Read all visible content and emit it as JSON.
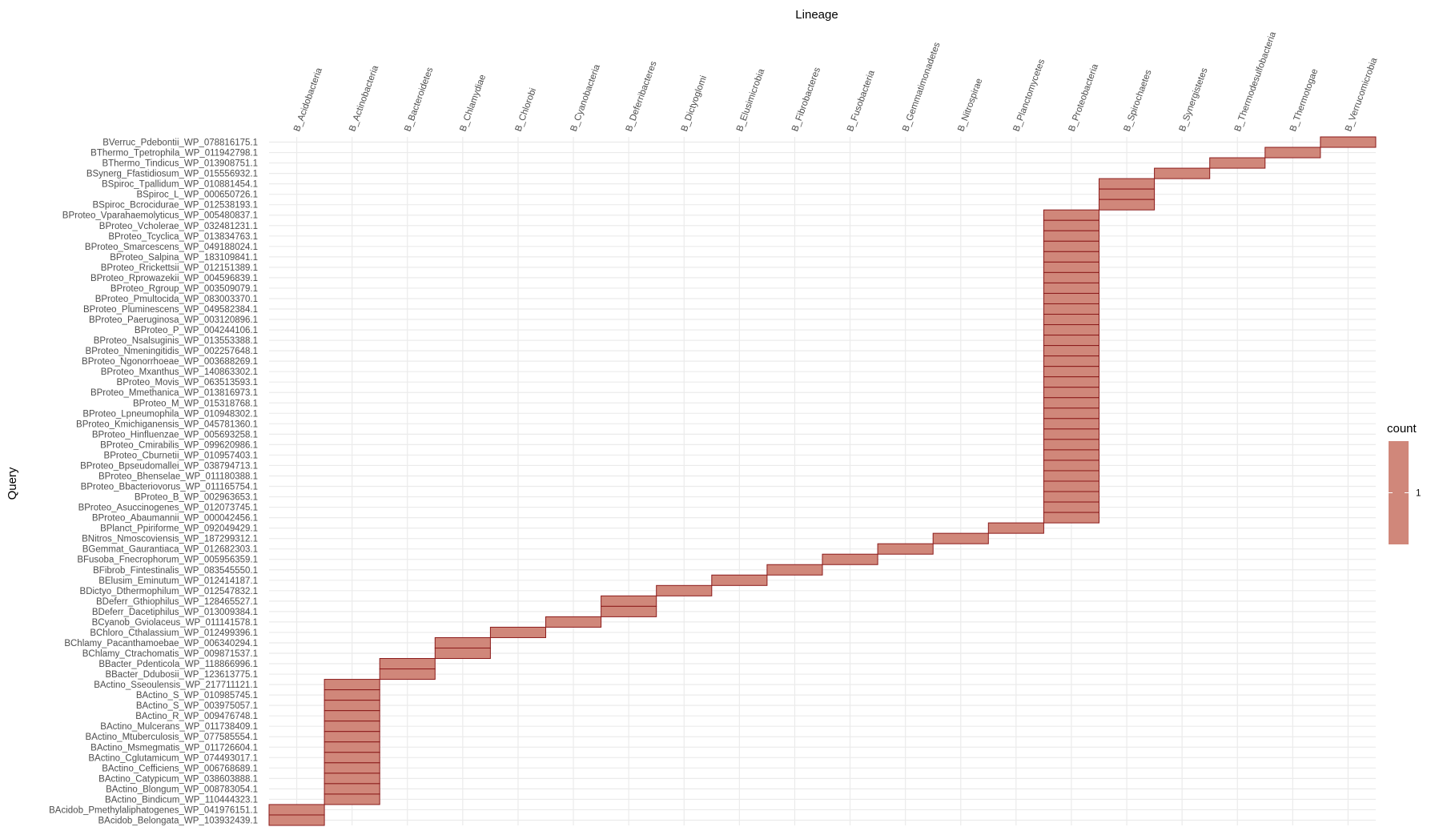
{
  "chart_data": {
    "type": "heatmap",
    "title": "",
    "xlabel": "Lineage",
    "ylabel": "Query",
    "x_position": "top",
    "grid": true,
    "fill_color": "#d0877a",
    "border_color": "#8b1a1a",
    "grid_color": "#ebebeb",
    "legend": {
      "title": "count",
      "label": "1",
      "placement": "right"
    },
    "categories_x": [
      "B_Acidobacteria",
      "B_Actinobacteria",
      "B_Bacteroidetes",
      "B_Chlamydiae",
      "B_Chlorobi",
      "B_Cyanobacteria",
      "B_Deferribacteres",
      "B_Dictyoglomi",
      "B_Elusimicrobia",
      "B_Fibrobacteres",
      "B_Fusobacteria",
      "B_Gemmatimonadetes",
      "B_Nitrospirae",
      "B_Planctomycetes",
      "B_Proteobacteria",
      "B_Spirochaetes",
      "B_Synergistetes",
      "B_Thermodesulfobacteria",
      "B_Thermotogae",
      "B_Verrucomicrobia"
    ],
    "categories_y": [
      "BVerruc_Pdebontii_WP_078816175.1",
      "BThermo_Tpetrophila_WP_011942798.1",
      "BThermo_Tindicus_WP_013908751.1",
      "BSynerg_Ffastidiosum_WP_015556932.1",
      "BSpiroc_Tpallidum_WP_010881454.1",
      "BSpiroc_L_WP_000650726.1",
      "BSpiroc_Bcrocidurae_WP_012538193.1",
      "BProteo_Vparahaemolyticus_WP_005480837.1",
      "BProteo_Vcholerae_WP_032481231.1",
      "BProteo_Tcyclica_WP_013834763.1",
      "BProteo_Smarcescens_WP_049188024.1",
      "BProteo_Salpina_WP_183109841.1",
      "BProteo_Rrickettsii_WP_012151389.1",
      "BProteo_Rprowazekii_WP_004596839.1",
      "BProteo_Rgroup_WP_003509079.1",
      "BProteo_Pmultocida_WP_083003370.1",
      "BProteo_Pluminescens_WP_049582384.1",
      "BProteo_Paeruginosa_WP_003120896.1",
      "BProteo_P_WP_004244106.1",
      "BProteo_Nsalsuginis_WP_013553388.1",
      "BProteo_Nmeningitidis_WP_002257648.1",
      "BProteo_Ngonorrhoeae_WP_003688269.1",
      "BProteo_Mxanthus_WP_140863302.1",
      "BProteo_Movis_WP_063513593.1",
      "BProteo_Mmethanica_WP_013816973.1",
      "BProteo_M_WP_015318768.1",
      "BProteo_Lpneumophila_WP_010948302.1",
      "BProteo_Kmichiganensis_WP_045781360.1",
      "BProteo_Hinfluenzae_WP_005693258.1",
      "BProteo_Cmirabilis_WP_099620986.1",
      "BProteo_Cburnetii_WP_010957403.1",
      "BProteo_Bpseudomallei_WP_038794713.1",
      "BProteo_Bhenselae_WP_011180388.1",
      "BProteo_Bbacteriovorus_WP_011165754.1",
      "BProteo_B_WP_002963653.1",
      "BProteo_Asuccinogenes_WP_012073745.1",
      "BProteo_Abaumannii_WP_000042456.1",
      "BPlanct_Ppiriforme_WP_092049429.1",
      "BNitros_Nmoscoviensis_WP_187299312.1",
      "BGemmat_Gaurantiaca_WP_012682303.1",
      "BFusoba_Fnecrophorum_WP_005956359.1",
      "BFibrob_Fintestinalis_WP_083545550.1",
      "BElusim_Eminutum_WP_012414187.1",
      "BDictyo_Dthermophilum_WP_012547832.1",
      "BDeferr_Gthiophilus_WP_128465527.1",
      "BDeferr_Dacetiphilus_WP_013009384.1",
      "BCyanob_Gviolaceus_WP_011141578.1",
      "BChloro_Cthalassium_WP_012499396.1",
      "BChlamy_Pacanthamoebae_WP_006340294.1",
      "BChlamy_Ctrachomatis_WP_009871537.1",
      "BBacter_Pdenticola_WP_118866996.1",
      "BBacter_Ddubosii_WP_123613775.1",
      "BActino_Sseoulensis_WP_217711121.1",
      "BActino_S_WP_010985745.1",
      "BActino_S_WP_003975057.1",
      "BActino_R_WP_009476748.1",
      "BActino_Mulcerans_WP_011738409.1",
      "BActino_Mtuberculosis_WP_077585554.1",
      "BActino_Msmegmatis_WP_011726604.1",
      "BActino_Cglutamicum_WP_074493017.1",
      "BActino_Cefficiens_WP_006768689.1",
      "BActino_Catypicum_WP_038603888.1",
      "BActino_Blongum_WP_008783054.1",
      "BActino_Bindicum_WP_110444323.1",
      "BAcidob_Pmethylaliphatogenes_WP_041976151.1",
      "BAcidob_Belongata_WP_103932439.1"
    ],
    "cells": [
      {
        "x": "B_Verrucomicrobia",
        "y": "BVerruc_Pdebontii_WP_078816175.1",
        "value": 1
      },
      {
        "x": "B_Thermotogae",
        "y": "BThermo_Tpetrophila_WP_011942798.1",
        "value": 1
      },
      {
        "x": "B_Thermodesulfobacteria",
        "y": "BThermo_Tindicus_WP_013908751.1",
        "value": 1
      },
      {
        "x": "B_Synergistetes",
        "y": "BSynerg_Ffastidiosum_WP_015556932.1",
        "value": 1
      },
      {
        "x": "B_Spirochaetes",
        "y": "BSpiroc_Tpallidum_WP_010881454.1",
        "value": 1
      },
      {
        "x": "B_Spirochaetes",
        "y": "BSpiroc_L_WP_000650726.1",
        "value": 1
      },
      {
        "x": "B_Spirochaetes",
        "y": "BSpiroc_Bcrocidurae_WP_012538193.1",
        "value": 1
      },
      {
        "x": "B_Proteobacteria",
        "y": "BProteo_Vparahaemolyticus_WP_005480837.1",
        "value": 1
      },
      {
        "x": "B_Proteobacteria",
        "y": "BProteo_Vcholerae_WP_032481231.1",
        "value": 1
      },
      {
        "x": "B_Proteobacteria",
        "y": "BProteo_Tcyclica_WP_013834763.1",
        "value": 1
      },
      {
        "x": "B_Proteobacteria",
        "y": "BProteo_Smarcescens_WP_049188024.1",
        "value": 1
      },
      {
        "x": "B_Proteobacteria",
        "y": "BProteo_Salpina_WP_183109841.1",
        "value": 1
      },
      {
        "x": "B_Proteobacteria",
        "y": "BProteo_Rrickettsii_WP_012151389.1",
        "value": 1
      },
      {
        "x": "B_Proteobacteria",
        "y": "BProteo_Rprowazekii_WP_004596839.1",
        "value": 1
      },
      {
        "x": "B_Proteobacteria",
        "y": "BProteo_Rgroup_WP_003509079.1",
        "value": 1
      },
      {
        "x": "B_Proteobacteria",
        "y": "BProteo_Pmultocida_WP_083003370.1",
        "value": 1
      },
      {
        "x": "B_Proteobacteria",
        "y": "BProteo_Pluminescens_WP_049582384.1",
        "value": 1
      },
      {
        "x": "B_Proteobacteria",
        "y": "BProteo_Paeruginosa_WP_003120896.1",
        "value": 1
      },
      {
        "x": "B_Proteobacteria",
        "y": "BProteo_P_WP_004244106.1",
        "value": 1
      },
      {
        "x": "B_Proteobacteria",
        "y": "BProteo_Nsalsuginis_WP_013553388.1",
        "value": 1
      },
      {
        "x": "B_Proteobacteria",
        "y": "BProteo_Nmeningitidis_WP_002257648.1",
        "value": 1
      },
      {
        "x": "B_Proteobacteria",
        "y": "BProteo_Ngonorrhoeae_WP_003688269.1",
        "value": 1
      },
      {
        "x": "B_Proteobacteria",
        "y": "BProteo_Mxanthus_WP_140863302.1",
        "value": 1
      },
      {
        "x": "B_Proteobacteria",
        "y": "BProteo_Movis_WP_063513593.1",
        "value": 1
      },
      {
        "x": "B_Proteobacteria",
        "y": "BProteo_Mmethanica_WP_013816973.1",
        "value": 1
      },
      {
        "x": "B_Proteobacteria",
        "y": "BProteo_M_WP_015318768.1",
        "value": 1
      },
      {
        "x": "B_Proteobacteria",
        "y": "BProteo_Lpneumophila_WP_010948302.1",
        "value": 1
      },
      {
        "x": "B_Proteobacteria",
        "y": "BProteo_Kmichiganensis_WP_045781360.1",
        "value": 1
      },
      {
        "x": "B_Proteobacteria",
        "y": "BProteo_Hinfluenzae_WP_005693258.1",
        "value": 1
      },
      {
        "x": "B_Proteobacteria",
        "y": "BProteo_Cmirabilis_WP_099620986.1",
        "value": 1
      },
      {
        "x": "B_Proteobacteria",
        "y": "BProteo_Cburnetii_WP_010957403.1",
        "value": 1
      },
      {
        "x": "B_Proteobacteria",
        "y": "BProteo_Bpseudomallei_WP_038794713.1",
        "value": 1
      },
      {
        "x": "B_Proteobacteria",
        "y": "BProteo_Bhenselae_WP_011180388.1",
        "value": 1
      },
      {
        "x": "B_Proteobacteria",
        "y": "BProteo_Bbacteriovorus_WP_011165754.1",
        "value": 1
      },
      {
        "x": "B_Proteobacteria",
        "y": "BProteo_B_WP_002963653.1",
        "value": 1
      },
      {
        "x": "B_Proteobacteria",
        "y": "BProteo_Asuccinogenes_WP_012073745.1",
        "value": 1
      },
      {
        "x": "B_Proteobacteria",
        "y": "BProteo_Abaumannii_WP_000042456.1",
        "value": 1
      },
      {
        "x": "B_Planctomycetes",
        "y": "BPlanct_Ppiriforme_WP_092049429.1",
        "value": 1
      },
      {
        "x": "B_Nitrospirae",
        "y": "BNitros_Nmoscoviensis_WP_187299312.1",
        "value": 1
      },
      {
        "x": "B_Gemmatimonadetes",
        "y": "BGemmat_Gaurantiaca_WP_012682303.1",
        "value": 1
      },
      {
        "x": "B_Fusobacteria",
        "y": "BFusoba_Fnecrophorum_WP_005956359.1",
        "value": 1
      },
      {
        "x": "B_Fibrobacteres",
        "y": "BFibrob_Fintestinalis_WP_083545550.1",
        "value": 1
      },
      {
        "x": "B_Elusimicrobia",
        "y": "BElusim_Eminutum_WP_012414187.1",
        "value": 1
      },
      {
        "x": "B_Dictyoglomi",
        "y": "BDictyo_Dthermophilum_WP_012547832.1",
        "value": 1
      },
      {
        "x": "B_Deferribacteres",
        "y": "BDeferr_Gthiophilus_WP_128465527.1",
        "value": 1
      },
      {
        "x": "B_Deferribacteres",
        "y": "BDeferr_Dacetiphilus_WP_013009384.1",
        "value": 1
      },
      {
        "x": "B_Cyanobacteria",
        "y": "BCyanob_Gviolaceus_WP_011141578.1",
        "value": 1
      },
      {
        "x": "B_Chlorobi",
        "y": "BChloro_Cthalassium_WP_012499396.1",
        "value": 1
      },
      {
        "x": "B_Chlamydiae",
        "y": "BChlamy_Pacanthamoebae_WP_006340294.1",
        "value": 1
      },
      {
        "x": "B_Chlamydiae",
        "y": "BChlamy_Ctrachomatis_WP_009871537.1",
        "value": 1
      },
      {
        "x": "B_Bacteroidetes",
        "y": "BBacter_Pdenticola_WP_118866996.1",
        "value": 1
      },
      {
        "x": "B_Bacteroidetes",
        "y": "BBacter_Ddubosii_WP_123613775.1",
        "value": 1
      },
      {
        "x": "B_Actinobacteria",
        "y": "BActino_Sseoulensis_WP_217711121.1",
        "value": 1
      },
      {
        "x": "B_Actinobacteria",
        "y": "BActino_S_WP_010985745.1",
        "value": 1
      },
      {
        "x": "B_Actinobacteria",
        "y": "BActino_S_WP_003975057.1",
        "value": 1
      },
      {
        "x": "B_Actinobacteria",
        "y": "BActino_R_WP_009476748.1",
        "value": 1
      },
      {
        "x": "B_Actinobacteria",
        "y": "BActino_Mulcerans_WP_011738409.1",
        "value": 1
      },
      {
        "x": "B_Actinobacteria",
        "y": "BActino_Mtuberculosis_WP_077585554.1",
        "value": 1
      },
      {
        "x": "B_Actinobacteria",
        "y": "BActino_Msmegmatis_WP_011726604.1",
        "value": 1
      },
      {
        "x": "B_Actinobacteria",
        "y": "BActino_Cglutamicum_WP_074493017.1",
        "value": 1
      },
      {
        "x": "B_Actinobacteria",
        "y": "BActino_Cefficiens_WP_006768689.1",
        "value": 1
      },
      {
        "x": "B_Actinobacteria",
        "y": "BActino_Catypicum_WP_038603888.1",
        "value": 1
      },
      {
        "x": "B_Actinobacteria",
        "y": "BActino_Blongum_WP_008783054.1",
        "value": 1
      },
      {
        "x": "B_Actinobacteria",
        "y": "BActino_Bindicum_WP_110444323.1",
        "value": 1
      },
      {
        "x": "B_Acidobacteria",
        "y": "BAcidob_Pmethylaliphatogenes_WP_041976151.1",
        "value": 1
      },
      {
        "x": "B_Acidobacteria",
        "y": "BAcidob_Belongata_WP_103932439.1",
        "value": 1
      }
    ]
  }
}
